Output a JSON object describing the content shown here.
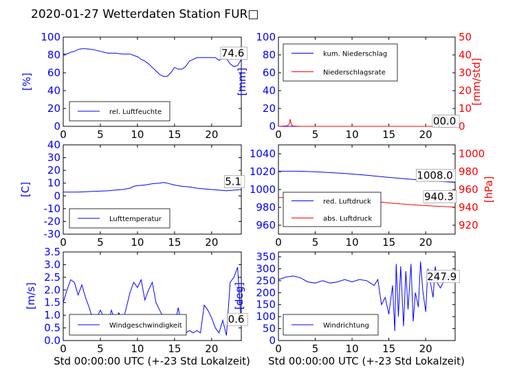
{
  "chart_data": {
    "title": "2020-01-27 Wetterdaten Station FUR□",
    "xlabel": "Std 00:00:00 UTC (+-23 Std Lokalzeit)",
    "xlim": [
      0,
      24
    ],
    "xticks": [
      0,
      5,
      10,
      15,
      20
    ],
    "panels": [
      {
        "type": "line",
        "ylabel": "[%]",
        "ylim": [
          0,
          100
        ],
        "yticks": [
          0,
          20,
          40,
          60,
          80,
          100
        ],
        "axis_color": "#0000ff",
        "series": [
          {
            "name": "rel. Luftfeuchte",
            "color": "#0000ff",
            "x": [
              0,
              0.5,
              1,
              1.5,
              2,
              2.5,
              3,
              4,
              5,
              6,
              7,
              8,
              9,
              10,
              10.5,
              11,
              11.5,
              12,
              12.5,
              13,
              13.5,
              14,
              14.5,
              15,
              15.5,
              16,
              16.5,
              17,
              18,
              19,
              20,
              20.5,
              21,
              21.5,
              22,
              22.5,
              23,
              23.5,
              24
            ],
            "y": [
              81,
              81,
              83,
              84,
              86,
              87,
              87,
              86,
              84,
              82,
              82,
              81,
              81,
              78,
              75,
              73,
              70,
              66,
              62,
              58,
              56,
              56,
              60,
              66,
              64,
              64,
              67,
              73,
              77,
              77,
              77,
              77,
              74,
              76,
              76,
              70,
              67,
              68,
              75
            ]
          }
        ],
        "legend": {
          "position": "lower-left"
        },
        "annotations": [
          {
            "text": "74.6",
            "x": 21.3,
            "y": 78
          }
        ]
      },
      {
        "type": "line",
        "ylabel": "[mm]",
        "ylim": [
          0,
          100
        ],
        "yticks": [
          0,
          20,
          40,
          60,
          80,
          100
        ],
        "axis_color": "#0000ff",
        "ylabel2": "[mm/std]",
        "ylim2": [
          0,
          50
        ],
        "yticks2": [
          0,
          10,
          20,
          30,
          40,
          50
        ],
        "axis2_color": "#ff0000",
        "series": [
          {
            "name": "kum. Niederschlag",
            "color": "#0000ff",
            "axis": "left",
            "x": [
              0,
              24
            ],
            "y": [
              0,
              0
            ]
          },
          {
            "name": "Niederschlagsrate",
            "color": "#ff0000",
            "axis": "right",
            "x": [
              0,
              1.2,
              1.5,
              1.6,
              1.7,
              1.8,
              2.0,
              3,
              24
            ],
            "y": [
              0,
              0.3,
              1.5,
              4,
              2,
              0.5,
              0.2,
              0,
              0
            ]
          }
        ],
        "legend": {
          "position": "upper-left"
        },
        "annotations": [
          {
            "text": "0.0",
            "x": 21.0,
            "y": 2
          },
          {
            "text": "0.0",
            "x": 21.9,
            "y": 2
          }
        ]
      },
      {
        "type": "line",
        "ylabel": "[C]",
        "ylim": [
          -30,
          40
        ],
        "yticks": [
          -30,
          -20,
          -10,
          0,
          10,
          20,
          30,
          40
        ],
        "axis_color": "#0000ff",
        "series": [
          {
            "name": "Lufttemperatur",
            "color": "#0000ff",
            "x": [
              0,
              2,
              4,
              6,
              7,
              8,
              9,
              9.5,
              10,
              11,
              12,
              13,
              13.5,
              14,
              15,
              16,
              17,
              18,
              19,
              20,
              21,
              22,
              23,
              24
            ],
            "y": [
              3,
              3,
              3.5,
              4,
              4.5,
              5,
              6,
              7.5,
              8,
              8.5,
              9.5,
              10,
              10.5,
              10,
              8.5,
              7.5,
              7,
              6,
              5.5,
              5,
              4.5,
              4,
              4.5,
              5
            ]
          }
        ],
        "legend": {
          "position": "lower-left"
        },
        "annotations": [
          {
            "text": "5.1",
            "x": 21.8,
            "y": 8.5
          }
        ]
      },
      {
        "type": "line",
        "ylabel": "",
        "ylim": [
          950,
          1050
        ],
        "yticks": [
          960,
          980,
          1000,
          1020,
          1040
        ],
        "axis_color": "#0000ff",
        "ylabel2": "[hPa]",
        "ylim2": [
          910,
          1010
        ],
        "yticks2": [
          920,
          940,
          960,
          980,
          1000
        ],
        "axis2_color": "#ff0000",
        "series": [
          {
            "name": "red. Luftdruck",
            "color": "#0000ff",
            "axis": "left",
            "x": [
              0,
              3,
              6,
              9,
              12,
              15,
              18,
              21,
              24
            ],
            "y": [
              1020.5,
              1020.5,
              1019.5,
              1018,
              1016,
              1013.5,
              1011.5,
              1009.5,
              1008
            ]
          },
          {
            "name": "abs. Luftdruck",
            "color": "#ff0000",
            "axis": "right",
            "x": [
              0,
              3,
              6,
              9,
              12,
              15,
              18,
              21,
              24
            ],
            "y": [
              951,
              951,
              950.5,
              949.5,
              947.5,
              945,
              943,
              941.5,
              940.3
            ]
          }
        ],
        "legend": {
          "position": "lower-left"
        },
        "annotations": [
          {
            "text": "1008.0",
            "x": 18.8,
            "y": 1012
          },
          {
            "text": "940.3",
            "x": 19.8,
            "y": 988
          }
        ]
      },
      {
        "type": "line",
        "ylabel": "[m/s]",
        "ylim": [
          0,
          3.5
        ],
        "yticks": [
          0.0,
          0.5,
          1.0,
          1.5,
          2.0,
          2.5,
          3.0,
          3.5
        ],
        "axis_color": "#0000ff",
        "series": [
          {
            "name": "Windgeschwindigkeit",
            "color": "#0000ff",
            "x": [
              0,
              0.5,
              1,
              1.5,
              2,
              2.5,
              3,
              3.5,
              4,
              4.5,
              5,
              5.5,
              6,
              6.5,
              7,
              7.5,
              8,
              8.5,
              9,
              9.5,
              10,
              10.5,
              11,
              11.5,
              12,
              12.5,
              13,
              13.5,
              14,
              14.5,
              15,
              15.5,
              16,
              16.5,
              17,
              17.5,
              18,
              18.5,
              19,
              19.5,
              20,
              20.5,
              21,
              21.5,
              22,
              22.5,
              23,
              23.5,
              24
            ],
            "y": [
              1.5,
              2.0,
              2.4,
              2.3,
              1.8,
              2.2,
              1.7,
              1.3,
              0.8,
              0.9,
              1.2,
              0.9,
              0.6,
              1.2,
              0.8,
              1.1,
              0.7,
              1.3,
              1.9,
              2.3,
              2.1,
              2.4,
              1.6,
              2.0,
              2.3,
              1.5,
              1.2,
              0.9,
              0.7,
              0.4,
              0.6,
              1.3,
              0.5,
              0.3,
              0.4,
              0.3,
              0.4,
              0.3,
              1.4,
              1.2,
              0.9,
              0.5,
              0.3,
              0.8,
              0.2,
              2.3,
              2.5,
              2.9,
              0.6
            ]
          }
        ],
        "legend": {
          "position": "lower-left"
        },
        "annotations": [
          {
            "text": "0.6",
            "x": 22.2,
            "y": 0.7
          }
        ]
      },
      {
        "type": "line",
        "ylabel": "[deg]",
        "ylim": [
          0,
          370
        ],
        "yticks": [
          0,
          50,
          100,
          150,
          200,
          250,
          300,
          350
        ],
        "axis_color": "#0000ff",
        "series": [
          {
            "name": "Windrichtung",
            "color": "#0000ff",
            "x": [
              0,
              1,
              2,
              3,
              4,
              5,
              6,
              7,
              8,
              9,
              10,
              11,
              12,
              12.5,
              13,
              13.5,
              14,
              14.5,
              15,
              15.5,
              15.8,
              16,
              16.3,
              16.6,
              17,
              17.3,
              17.6,
              18,
              18.3,
              18.6,
              19,
              19.3,
              19.6,
              20,
              20.3,
              20.6,
              21,
              21.3,
              21.6,
              22,
              22.5,
              23,
              23.5,
              24
            ],
            "y": [
              255,
              265,
              270,
              262,
              245,
              240,
              250,
              240,
              245,
              255,
              245,
              255,
              250,
              240,
              230,
              255,
              150,
              180,
              110,
              230,
              40,
              320,
              100,
              310,
              60,
              290,
              130,
              320,
              80,
              200,
              140,
              330,
              210,
              120,
              300,
              250,
              180,
              310,
              240,
              220,
              250,
              270,
              260,
              248
            ]
          }
        ],
        "legend": {
          "position": "lower-left"
        },
        "annotations": [
          {
            "text": "247.9",
            "x": 20.2,
            "y": 253
          }
        ]
      }
    ]
  }
}
